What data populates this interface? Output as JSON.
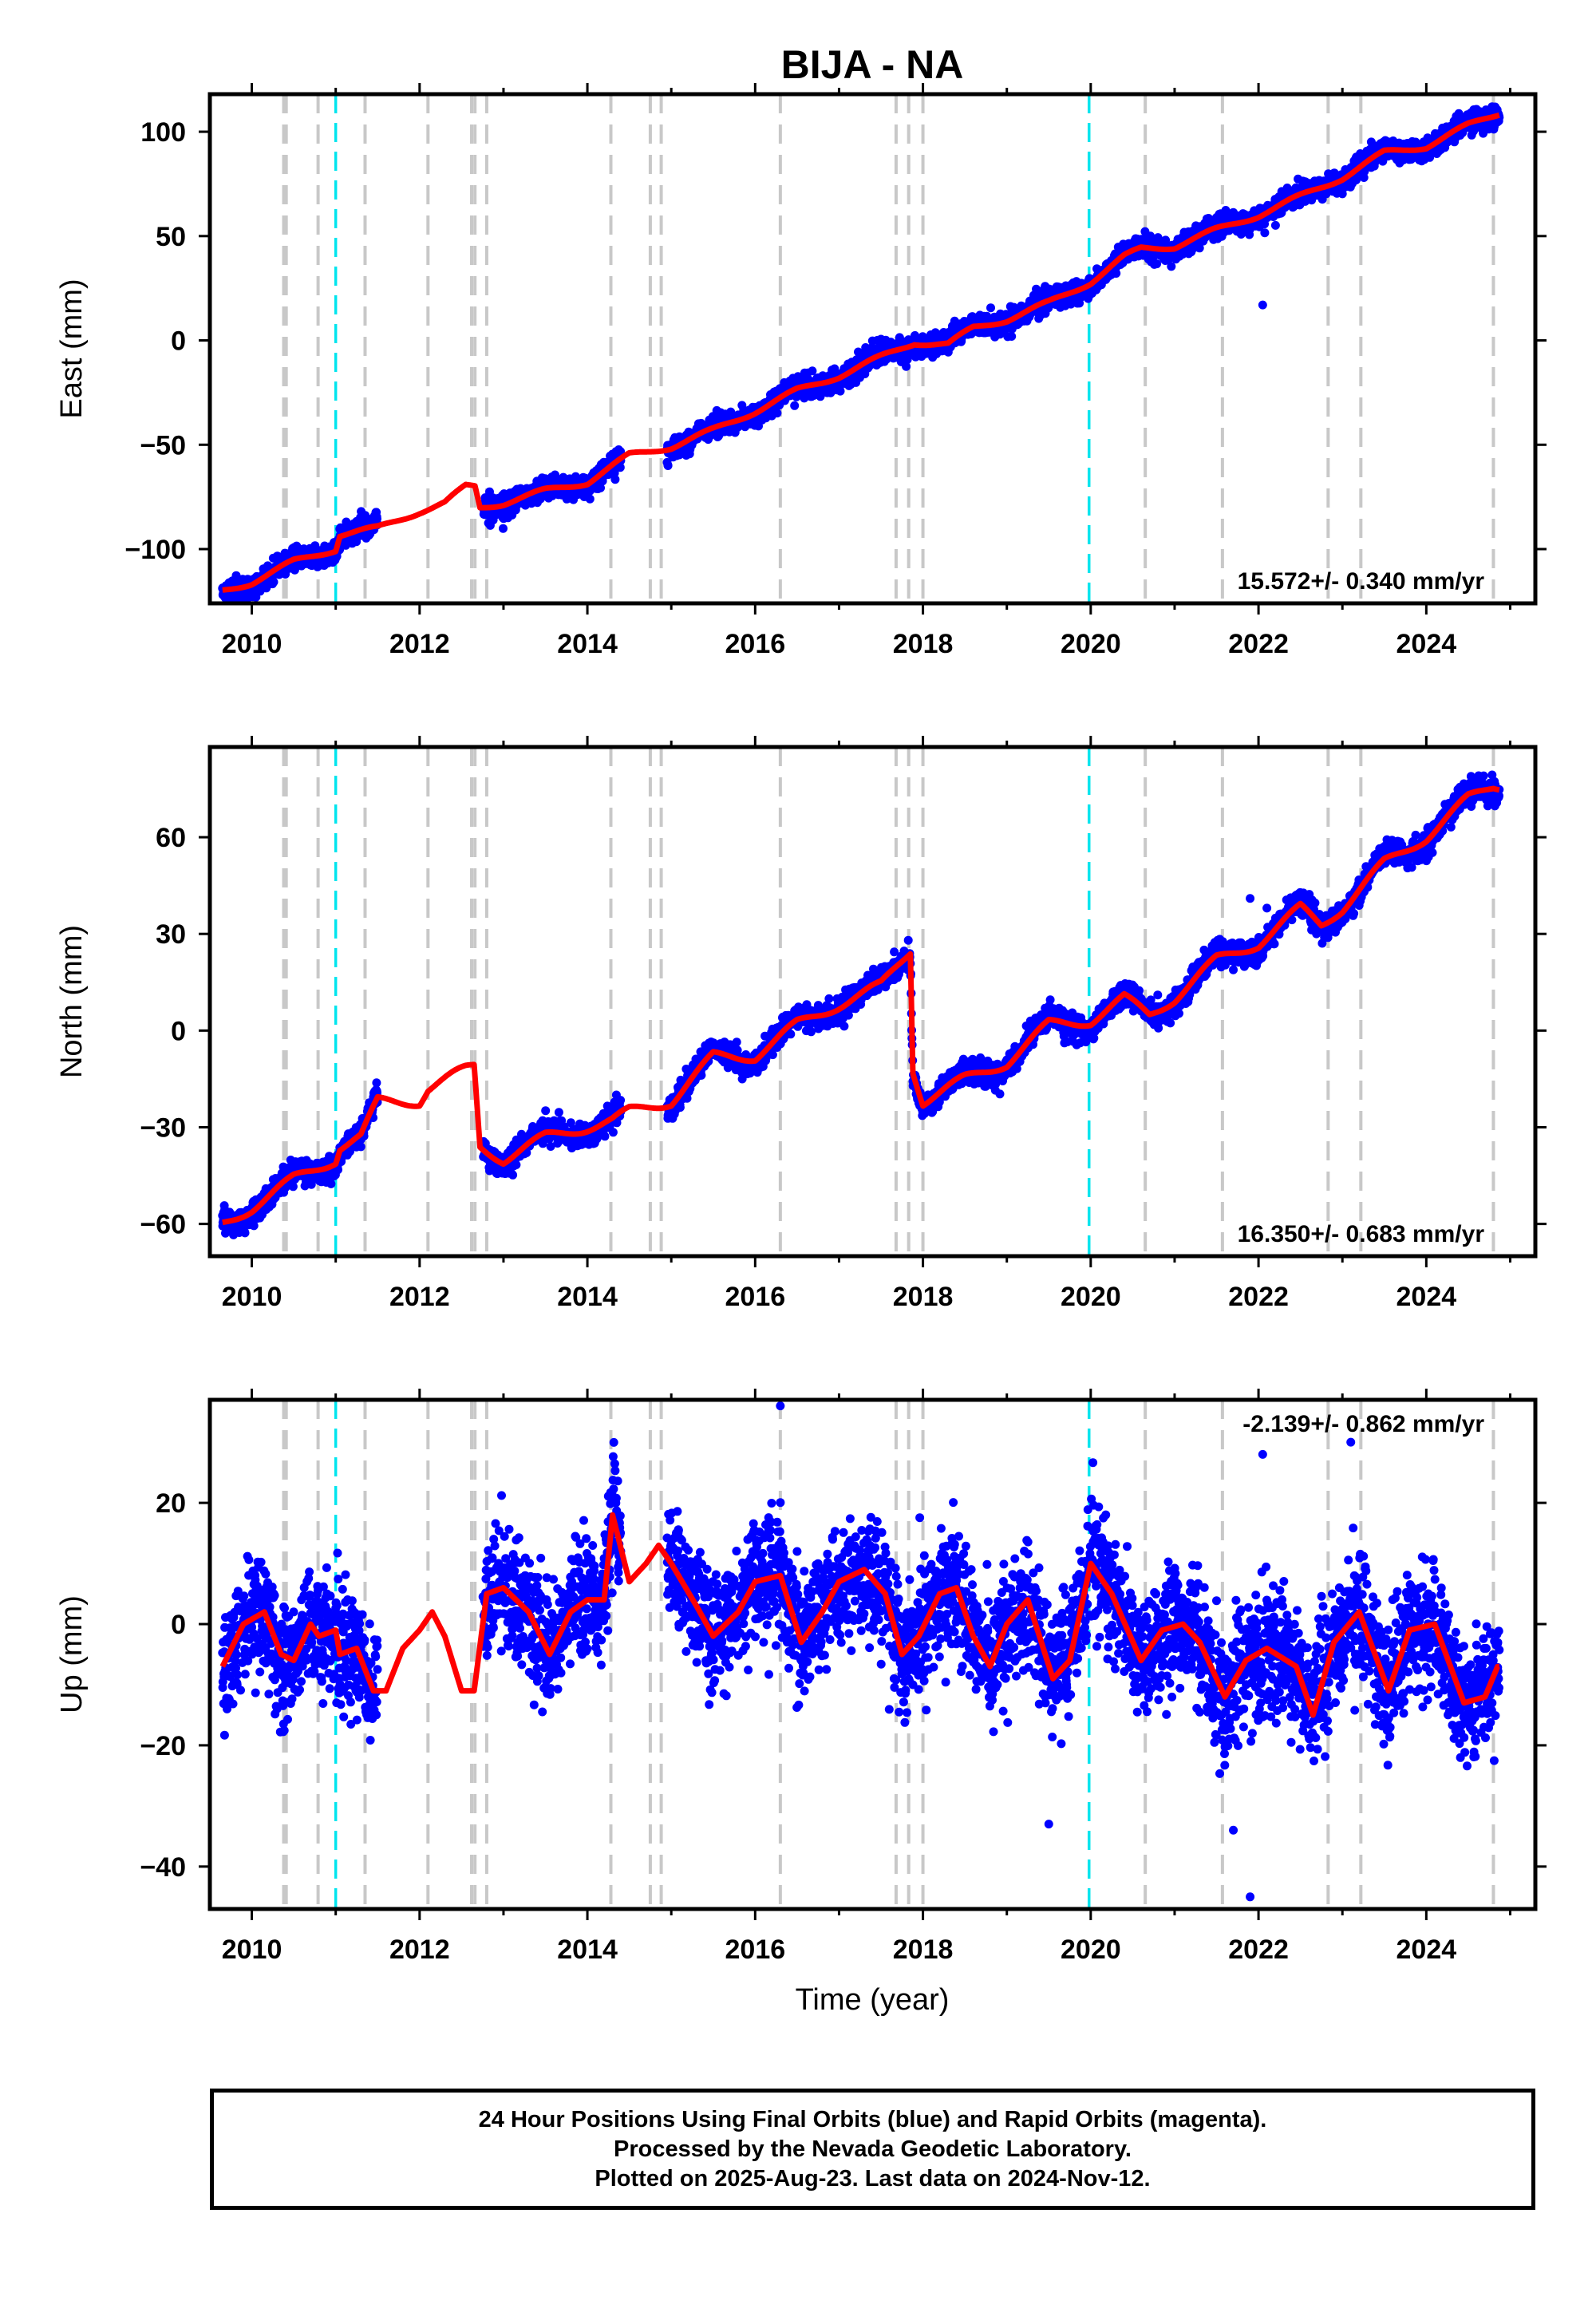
{
  "chart_data": {
    "type": "scatter",
    "title": "BIJA - NA",
    "xlabel": "Time (year)",
    "xlim": [
      2009.5,
      2025.3
    ],
    "x_ticks": [
      2010,
      2012,
      2014,
      2016,
      2018,
      2020,
      2022,
      2024
    ],
    "x_tick_labels": [
      "2010",
      "2012",
      "2014",
      "2016",
      "2018",
      "2020",
      "2022",
      "2024"
    ],
    "data_start": 2009.65,
    "data_end": 2024.87,
    "gaps": [
      [
        2011.5,
        2012.75
      ],
      [
        2014.4,
        2014.95
      ]
    ],
    "series_colors": {
      "final_orbits": "#0000ff",
      "model": "#ff0000"
    },
    "equipment_change_lines": {
      "color": "#c8c8c8",
      "x": [
        2010.38,
        2010.41,
        2010.79,
        2011.35,
        2012.1,
        2012.62,
        2012.66,
        2012.8,
        2014.28,
        2014.75,
        2014.88,
        2016.3,
        2017.68,
        2017.83,
        2018.0,
        2020.65,
        2021.57,
        2022.83,
        2023.22,
        2024.8
      ]
    },
    "earthquake_lines": {
      "color": "#00e5ee",
      "x": [
        2011.0,
        2019.98
      ]
    },
    "panels": [
      {
        "name": "East",
        "ylabel": "East (mm)",
        "ylim": [
          -126,
          118
        ],
        "y_ticks": [
          -100,
          -50,
          0,
          50,
          100
        ],
        "y_tick_labels": [
          "−100",
          "−50",
          "0",
          "50",
          "100"
        ],
        "rate_text": "15.572+/- 0.340 mm/yr",
        "rate_position": "bottom-right",
        "noise_sd": 2.5,
        "seasonal_amp": 2.0,
        "outliers": [
          [
            2022.05,
            17
          ]
        ],
        "trend": [
          [
            2009.65,
            -120
          ],
          [
            2010.0,
            -116
          ],
          [
            2010.5,
            -106
          ],
          [
            2011.0,
            -100
          ],
          [
            2011.05,
            -93
          ],
          [
            2011.5,
            -90
          ],
          [
            2012.0,
            -82
          ],
          [
            2012.3,
            -78
          ],
          [
            2012.55,
            -70
          ],
          [
            2012.66,
            -70
          ],
          [
            2012.72,
            -80
          ],
          [
            2013.0,
            -78
          ],
          [
            2013.5,
            -72
          ],
          [
            2014.0,
            -68
          ],
          [
            2014.5,
            -55
          ],
          [
            2015.0,
            -51
          ],
          [
            2015.5,
            -43
          ],
          [
            2016.0,
            -34
          ],
          [
            2016.5,
            -24
          ],
          [
            2017.0,
            -17
          ],
          [
            2017.5,
            -8
          ],
          [
            2017.9,
            -1
          ],
          [
            2018.3,
            -2
          ],
          [
            2018.6,
            6
          ],
          [
            2019.0,
            10
          ],
          [
            2019.5,
            18
          ],
          [
            2020.0,
            28
          ],
          [
            2020.4,
            40
          ],
          [
            2020.6,
            44
          ],
          [
            2021.0,
            45
          ],
          [
            2021.5,
            53
          ],
          [
            2022.0,
            60
          ],
          [
            2022.5,
            69
          ],
          [
            2023.0,
            78
          ],
          [
            2023.5,
            90
          ],
          [
            2024.0,
            93
          ],
          [
            2024.5,
            103
          ],
          [
            2024.87,
            109
          ]
        ]
      },
      {
        "name": "North",
        "ylabel": "North (mm)",
        "ylim": [
          -70,
          88
        ],
        "y_ticks": [
          -60,
          -30,
          0,
          30,
          60
        ],
        "y_tick_labels": [
          "−60",
          "−30",
          "0",
          "30",
          "60"
        ],
        "rate_text": "16.350+/- 0.683 mm/yr",
        "rate_position": "bottom-right",
        "noise_sd": 1.8,
        "seasonal_amp": 2.5,
        "outliers": [
          [
            2021.9,
            41
          ],
          [
            2022.1,
            38
          ]
        ],
        "trend": [
          [
            2009.65,
            -60
          ],
          [
            2010.0,
            -55
          ],
          [
            2010.5,
            -46
          ],
          [
            2011.0,
            -40
          ],
          [
            2011.05,
            -36
          ],
          [
            2011.3,
            -33
          ],
          [
            2011.5,
            -22
          ],
          [
            2012.0,
            -22
          ],
          [
            2012.1,
            -18
          ],
          [
            2012.55,
            -12
          ],
          [
            2012.65,
            -11
          ],
          [
            2012.72,
            -36
          ],
          [
            2013.0,
            -40
          ],
          [
            2013.5,
            -33
          ],
          [
            2014.0,
            -30
          ],
          [
            2014.3,
            -28
          ],
          [
            2014.5,
            -25
          ],
          [
            2015.0,
            -22
          ],
          [
            2015.5,
            -8
          ],
          [
            2016.0,
            -8
          ],
          [
            2016.5,
            2
          ],
          [
            2017.0,
            8
          ],
          [
            2017.5,
            14
          ],
          [
            2017.85,
            25
          ],
          [
            2017.88,
            -12
          ],
          [
            2018.0,
            -22
          ],
          [
            2018.5,
            -15
          ],
          [
            2019.0,
            -10
          ],
          [
            2019.5,
            2
          ],
          [
            2020.0,
            3
          ],
          [
            2020.4,
            10
          ],
          [
            2020.7,
            5
          ],
          [
            2021.0,
            10
          ],
          [
            2021.5,
            22
          ],
          [
            2022.0,
            27
          ],
          [
            2022.5,
            38
          ],
          [
            2022.75,
            33
          ],
          [
            2023.0,
            38
          ],
          [
            2023.5,
            52
          ],
          [
            2024.0,
            60
          ],
          [
            2024.5,
            72
          ],
          [
            2024.8,
            76
          ]
        ]
      },
      {
        "name": "Up",
        "ylabel": "Up (mm)",
        "ylim": [
          -47,
          37
        ],
        "y_ticks": [
          -40,
          -20,
          0,
          20
        ],
        "y_tick_labels": [
          "−40",
          "−20",
          "0",
          "20"
        ],
        "rate_text": "-2.139+/- 0.862 mm/yr",
        "rate_position": "top-right",
        "noise_sd": 5.0,
        "seasonal_amp": 0,
        "outliers": [
          [
            2016.3,
            36
          ],
          [
            2021.9,
            -45
          ],
          [
            2019.5,
            -33
          ],
          [
            2023.1,
            30
          ],
          [
            2021.7,
            -34
          ],
          [
            2022.05,
            28
          ]
        ],
        "trend": [
          [
            2009.65,
            -7
          ],
          [
            2009.9,
            0
          ],
          [
            2010.15,
            2
          ],
          [
            2010.35,
            -5
          ],
          [
            2010.5,
            -6
          ],
          [
            2010.7,
            0
          ],
          [
            2010.8,
            -2
          ],
          [
            2011.0,
            -1
          ],
          [
            2011.05,
            -5
          ],
          [
            2011.25,
            -4
          ],
          [
            2011.45,
            -11
          ],
          [
            2011.6,
            -11
          ],
          [
            2011.8,
            -4
          ],
          [
            2012.0,
            -1
          ],
          [
            2012.15,
            2
          ],
          [
            2012.3,
            -2
          ],
          [
            2012.5,
            -11
          ],
          [
            2012.65,
            -11
          ],
          [
            2012.8,
            5
          ],
          [
            2013.0,
            6
          ],
          [
            2013.3,
            2
          ],
          [
            2013.55,
            -5
          ],
          [
            2013.8,
            2
          ],
          [
            2014.0,
            4
          ],
          [
            2014.2,
            4
          ],
          [
            2014.3,
            18
          ],
          [
            2014.5,
            7
          ],
          [
            2014.7,
            10
          ],
          [
            2014.85,
            13
          ],
          [
            2015.0,
            10
          ],
          [
            2015.3,
            3
          ],
          [
            2015.5,
            -2
          ],
          [
            2015.8,
            2
          ],
          [
            2016.0,
            7
          ],
          [
            2016.3,
            8
          ],
          [
            2016.55,
            -3
          ],
          [
            2016.8,
            2
          ],
          [
            2017.0,
            7
          ],
          [
            2017.3,
            9
          ],
          [
            2017.55,
            5
          ],
          [
            2017.75,
            -5
          ],
          [
            2017.95,
            -2
          ],
          [
            2018.2,
            5
          ],
          [
            2018.4,
            6
          ],
          [
            2018.6,
            -2
          ],
          [
            2018.8,
            -7
          ],
          [
            2019.0,
            0
          ],
          [
            2019.25,
            4
          ],
          [
            2019.55,
            -9
          ],
          [
            2019.75,
            -6
          ],
          [
            2020.0,
            10
          ],
          [
            2020.25,
            5
          ],
          [
            2020.6,
            -6
          ],
          [
            2020.85,
            -1
          ],
          [
            2021.1,
            0
          ],
          [
            2021.3,
            -3
          ],
          [
            2021.6,
            -12
          ],
          [
            2021.85,
            -6
          ],
          [
            2022.1,
            -4
          ],
          [
            2022.45,
            -7
          ],
          [
            2022.65,
            -15
          ],
          [
            2022.9,
            -3
          ],
          [
            2023.2,
            2
          ],
          [
            2023.55,
            -11
          ],
          [
            2023.8,
            -1
          ],
          [
            2024.1,
            0
          ],
          [
            2024.45,
            -13
          ],
          [
            2024.7,
            -12
          ],
          [
            2024.85,
            -7
          ]
        ]
      }
    ]
  },
  "footer": {
    "line1": "24 Hour Positions Using Final Orbits (blue) and Rapid Orbits (magenta).",
    "line2": "Processed by the Nevada Geodetic Laboratory.",
    "line3": "Plotted on 2025-Aug-23. Last data on 2024-Nov-12."
  }
}
